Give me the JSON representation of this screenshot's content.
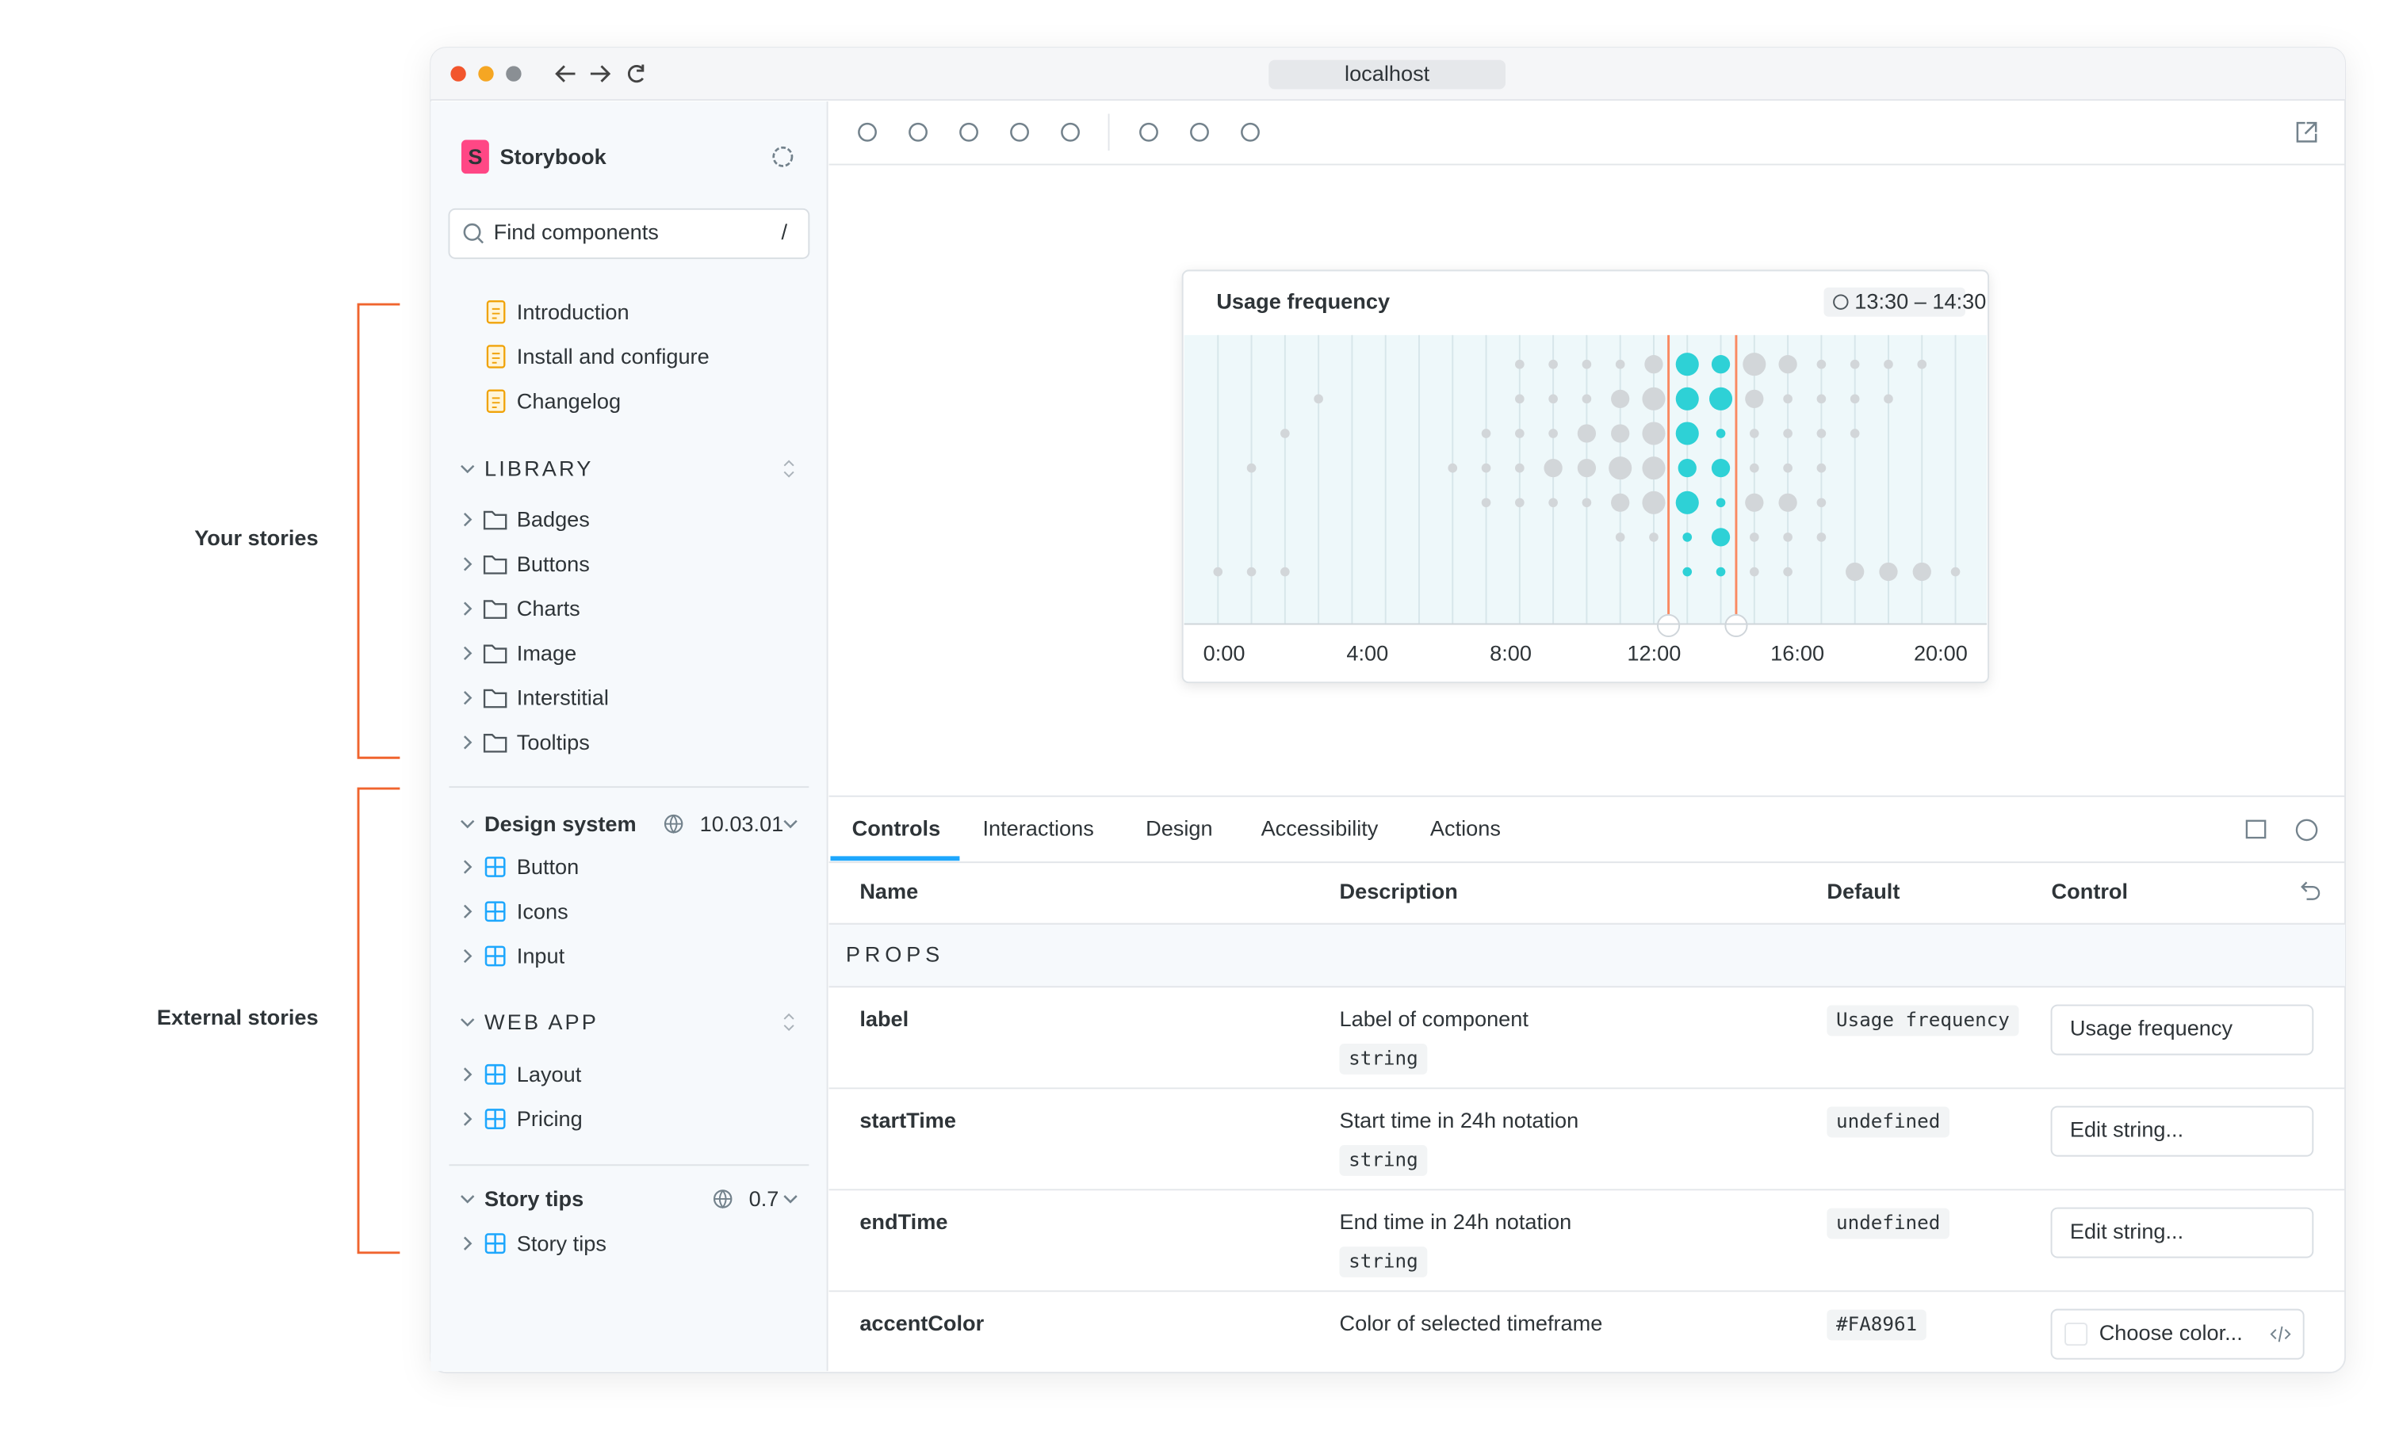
{
  "annotations": [
    "Your stories",
    "External stories"
  ],
  "browser": {
    "url": "localhost"
  },
  "sidebar": {
    "brand": "Storybook",
    "search": {
      "placeholder": "Find components",
      "shortcut": "/"
    },
    "docs": [
      "Introduction",
      "Install and configure",
      "Changelog"
    ],
    "library": {
      "title": "LIBRARY",
      "items": [
        "Badges",
        "Buttons",
        "Charts",
        "Image",
        "Interstitial",
        "Tooltips"
      ]
    },
    "refs": [
      {
        "title": "Design system",
        "version": "10.03.01",
        "items": [
          "Button",
          "Icons",
          "Input"
        ],
        "groups": [
          {
            "title": "WEB APP",
            "items": [
              "Layout",
              "Pricing"
            ]
          }
        ]
      },
      {
        "title": "Story tips",
        "version": "0.7",
        "items": [
          "Story tips"
        ]
      }
    ]
  },
  "preview": {
    "card": {
      "title": "Usage frequency",
      "time_range": "13:30 – 14:30",
      "x_labels": [
        "0:00",
        "4:00",
        "8:00",
        "12:00",
        "16:00",
        "20:00"
      ]
    }
  },
  "addons": {
    "tabs": [
      "Controls",
      "Interactions",
      "Design",
      "Accessibility",
      "Actions"
    ],
    "table": {
      "headers": [
        "Name",
        "Description",
        "Default",
        "Control"
      ],
      "section": "PROPS",
      "rows": [
        {
          "name": "label",
          "description": "Label of component",
          "type": "string",
          "default": "Usage frequency",
          "control": {
            "value": "Usage frequency"
          }
        },
        {
          "name": "startTime",
          "description": "Start time in 24h notation",
          "type": "string",
          "default": "undefined",
          "control": {
            "placeholder": "Edit string..."
          }
        },
        {
          "name": "endTime",
          "description": "End time in 24h notation",
          "type": "string",
          "default": "undefined",
          "control": {
            "placeholder": "Edit string..."
          }
        },
        {
          "name": "accentColor",
          "description": "Color of selected timeframe",
          "default": "#FA8961",
          "control": {
            "placeholder": "Choose color..."
          }
        }
      ]
    }
  }
}
